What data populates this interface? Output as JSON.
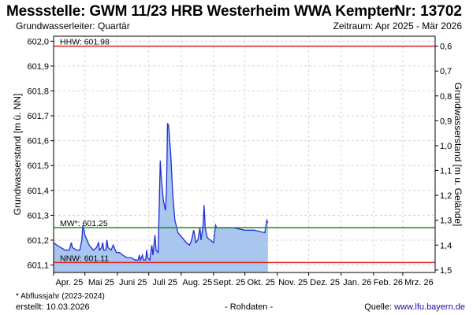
{
  "header": {
    "title": "Messstelle: GWM 11/23 HRB Westerheim WWA Kempten",
    "number": "Nr: 13702",
    "aquifer": "Grundwasserleiter: Quartär",
    "period": "Zeitraum: Apr 2025 - Mär 2026"
  },
  "footer": {
    "footnote": "* Abflussjahr (2023-2024)",
    "created": "erstellt:  10.03.2026",
    "rawdata": "- Rohdaten -",
    "source_label": "Quelle: ",
    "source_url": "www.lfu.bayern.de"
  },
  "colors": {
    "line": "#1f2fd6",
    "fill": "#a9c6ef",
    "hhw": "#e01b1b",
    "mw": "#1a8a1a",
    "nnw": "#e01b1b",
    "grid": "#d4d4d4"
  },
  "chart_data": {
    "type": "area",
    "ylabel_left": "Grundwasserstand [m ü. NN]",
    "ylabel_right": "Grundwasserstand [m u. Gelände]",
    "ylim": [
      601.07,
      602.02
    ],
    "left_ticks": [
      "601,1",
      "601,2",
      "601,3",
      "601,4",
      "601,5",
      "601,6",
      "601,7",
      "601,8",
      "601,9",
      "602,0"
    ],
    "right_ticks": [
      "0,6",
      "0,7",
      "0,8",
      "0,9",
      "1,0",
      "1,1",
      "1,2",
      "1,3",
      "1,4",
      "1,5"
    ],
    "ground_level": 602.58,
    "x_start": "2025-04-01",
    "x_end": "2026-04-01",
    "month_labels": [
      "Apr. 25",
      "Mai 25",
      "Juni 25",
      "Juli 25",
      "Aug. 25",
      "Sept. 25",
      "Okt. 25",
      "Nov. 25",
      "Dez. 25",
      "Jan. 26",
      "Feb. 26",
      "Mrz. 26"
    ],
    "reference_lines": [
      {
        "name": "HHW",
        "label": "HHW: 601.98",
        "value": 601.98
      },
      {
        "name": "MW",
        "label": "MW*: 601.25",
        "value": 601.25
      },
      {
        "name": "NNW",
        "label": "NNW: 601.11",
        "value": 601.11
      }
    ],
    "series": [
      {
        "points": [
          [
            "2025-04-01",
            601.19
          ],
          [
            "2025-04-04",
            601.18
          ],
          [
            "2025-04-08",
            601.17
          ],
          [
            "2025-04-12",
            601.16
          ],
          [
            "2025-04-16",
            601.16
          ],
          [
            "2025-04-18",
            601.19
          ],
          [
            "2025-04-19",
            601.17
          ],
          [
            "2025-04-23",
            601.16
          ],
          [
            "2025-04-26",
            601.16
          ],
          [
            "2025-04-28",
            601.2
          ],
          [
            "2025-04-29",
            601.26
          ],
          [
            "2025-05-01",
            601.22
          ],
          [
            "2025-05-05",
            601.18
          ],
          [
            "2025-05-09",
            601.16
          ],
          [
            "2025-05-12",
            601.17
          ],
          [
            "2025-05-14",
            601.19
          ],
          [
            "2025-05-15",
            601.16
          ],
          [
            "2025-05-17",
            601.17
          ],
          [
            "2025-05-18",
            601.19
          ],
          [
            "2025-05-19",
            601.16
          ],
          [
            "2025-05-21",
            601.16
          ],
          [
            "2025-05-22",
            601.2
          ],
          [
            "2025-05-23",
            601.17
          ],
          [
            "2025-05-26",
            601.16
          ],
          [
            "2025-05-28",
            601.18
          ],
          [
            "2025-05-31",
            601.15
          ],
          [
            "2025-06-03",
            601.15
          ],
          [
            "2025-06-06",
            601.14
          ],
          [
            "2025-06-10",
            601.13
          ],
          [
            "2025-06-14",
            601.13
          ],
          [
            "2025-06-18",
            601.12
          ],
          [
            "2025-06-21",
            601.12
          ],
          [
            "2025-06-22",
            601.14
          ],
          [
            "2025-06-23",
            601.12
          ],
          [
            "2025-06-25",
            601.14
          ],
          [
            "2025-06-26",
            601.12
          ],
          [
            "2025-06-28",
            601.12
          ],
          [
            "2025-06-29",
            601.16
          ],
          [
            "2025-06-30",
            601.13
          ],
          [
            "2025-07-02",
            601.12
          ],
          [
            "2025-07-04",
            601.18
          ],
          [
            "2025-07-05",
            601.14
          ],
          [
            "2025-07-07",
            601.22
          ],
          [
            "2025-07-08",
            601.16
          ],
          [
            "2025-07-10",
            601.15
          ],
          [
            "2025-07-12",
            601.52
          ],
          [
            "2025-07-13",
            601.45
          ],
          [
            "2025-07-15",
            601.36
          ],
          [
            "2025-07-17",
            601.32
          ],
          [
            "2025-07-18",
            601.4
          ],
          [
            "2025-07-19",
            601.67
          ],
          [
            "2025-07-20",
            601.66
          ],
          [
            "2025-07-22",
            601.55
          ],
          [
            "2025-07-24",
            601.38
          ],
          [
            "2025-07-26",
            601.28
          ],
          [
            "2025-07-29",
            601.23
          ],
          [
            "2025-08-02",
            601.21
          ],
          [
            "2025-08-06",
            601.19
          ],
          [
            "2025-08-09",
            601.18
          ],
          [
            "2025-08-11",
            601.2
          ],
          [
            "2025-08-13",
            601.24
          ],
          [
            "2025-08-14",
            601.22
          ],
          [
            "2025-08-15",
            601.19
          ],
          [
            "2025-08-17",
            601.2
          ],
          [
            "2025-08-19",
            601.25
          ],
          [
            "2025-08-20",
            601.2
          ],
          [
            "2025-08-22",
            601.26
          ],
          [
            "2025-08-23",
            601.34
          ],
          [
            "2025-08-24",
            601.25
          ],
          [
            "2025-08-26",
            601.21
          ],
          [
            "2025-08-29",
            601.2
          ],
          [
            "2025-09-01",
            601.19
          ],
          [
            "2025-09-03",
            601.26
          ],
          [
            "2025-09-04",
            601.25
          ],
          [
            "2025-09-10",
            601.25
          ],
          [
            "2025-09-20",
            601.25
          ],
          [
            "2025-10-01",
            601.24
          ],
          [
            "2025-10-10",
            601.24
          ],
          [
            "2025-10-20",
            601.23
          ],
          [
            "2025-10-22",
            601.28
          ],
          [
            "2025-10-23",
            601.27
          ]
        ]
      }
    ]
  }
}
